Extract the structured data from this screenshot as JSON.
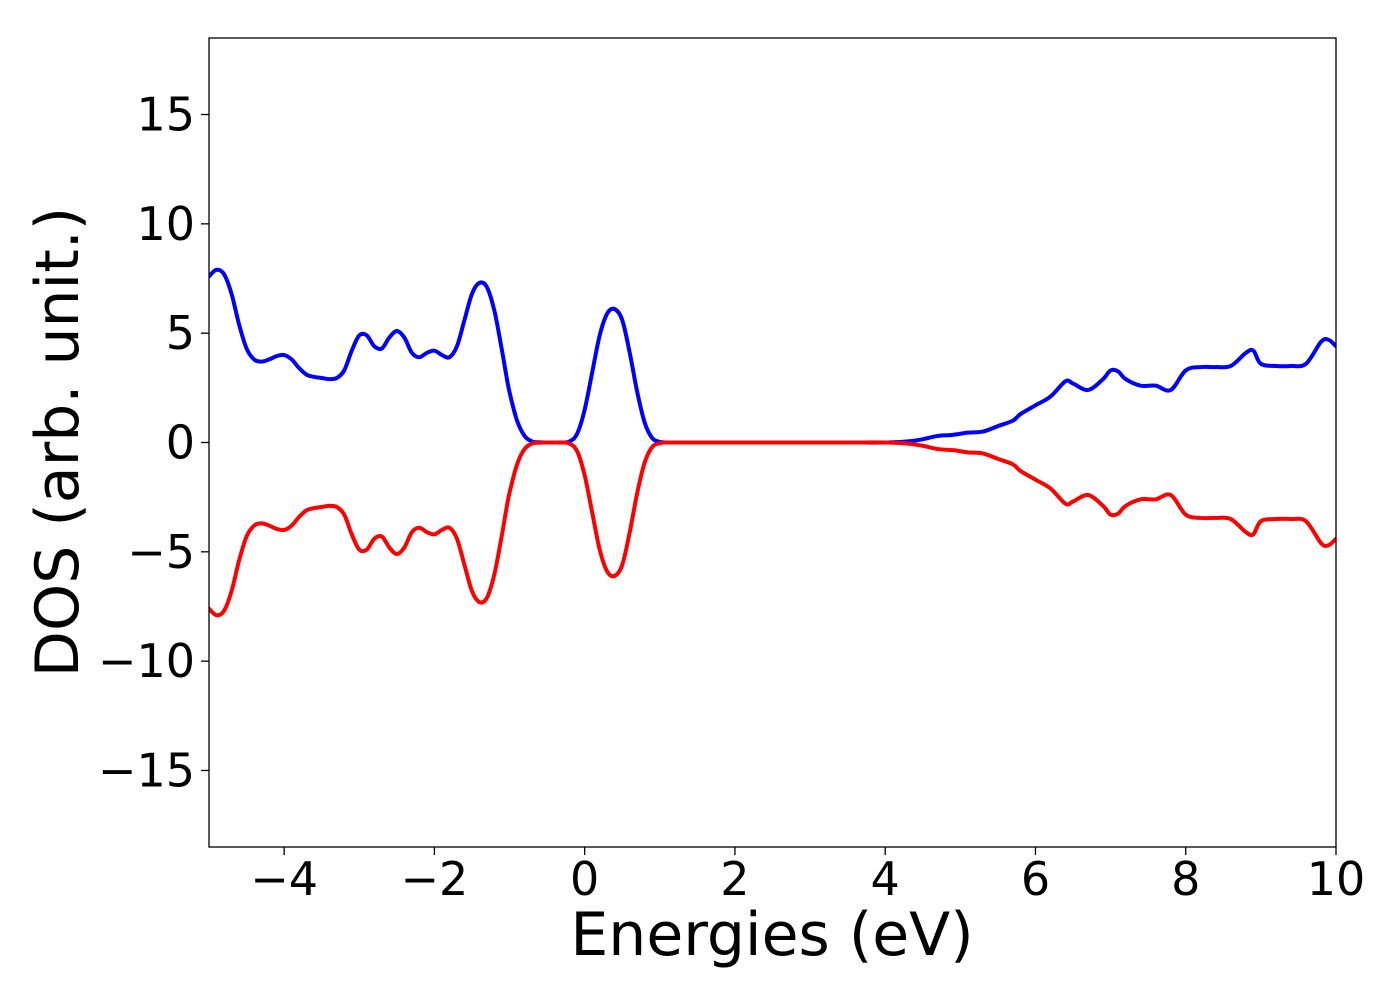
{
  "chart_data": {
    "type": "line",
    "xlabel": "Energies (eV)",
    "ylabel": "DOS (arb. unit.)",
    "xlim": [
      -5,
      10
    ],
    "ylim": [
      -18.5,
      18.5
    ],
    "x_ticks": [
      -4,
      -2,
      0,
      2,
      4,
      6,
      8,
      10
    ],
    "x_tick_labels": [
      "−4",
      "−2",
      "0",
      "2",
      "4",
      "6",
      "8",
      "10"
    ],
    "y_ticks": [
      -15,
      -10,
      -5,
      0,
      5,
      10,
      15
    ],
    "y_tick_labels": [
      "−15",
      "−10",
      "−5",
      "0",
      "5",
      "10",
      "15"
    ],
    "grid": false,
    "legend": "none",
    "series": [
      {
        "color": "#0000ff",
        "x": [
          -5.0,
          -4.9,
          -4.8,
          -4.7,
          -4.6,
          -4.5,
          -4.4,
          -4.3,
          -4.2,
          -4.1,
          -4.0,
          -3.9,
          -3.8,
          -3.7,
          -3.6,
          -3.5,
          -3.4,
          -3.3,
          -3.2,
          -3.1,
          -3.0,
          -2.9,
          -2.8,
          -2.7,
          -2.6,
          -2.5,
          -2.4,
          -2.3,
          -2.2,
          -2.1,
          -2.0,
          -1.9,
          -1.8,
          -1.7,
          -1.6,
          -1.5,
          -1.4,
          -1.3,
          -1.2,
          -1.1,
          -1.05,
          -1.0,
          -0.9,
          -0.8,
          -0.7,
          -0.6,
          -0.5,
          -0.4,
          -0.3,
          -0.2,
          -0.1,
          0.0,
          0.1,
          0.2,
          0.3,
          0.4,
          0.5,
          0.6,
          0.7,
          0.8,
          0.9,
          1.0,
          1.1,
          1.2,
          1.3,
          1.4,
          1.5,
          1.6,
          1.7,
          1.8,
          2.0,
          2.5,
          3.0,
          3.5,
          4.0,
          4.3,
          4.5,
          4.7,
          4.9,
          5.1,
          5.3,
          5.5,
          5.7,
          5.8,
          6.0,
          6.2,
          6.4,
          6.5,
          6.7,
          6.9,
          7.0,
          7.1,
          7.2,
          7.4,
          7.6,
          7.8,
          8.0,
          8.2,
          8.4,
          8.6,
          8.8,
          8.9,
          9.0,
          9.2,
          9.4,
          9.6,
          9.8,
          9.9,
          10.0
        ],
        "y": [
          7.6,
          7.9,
          7.7,
          6.8,
          5.4,
          4.3,
          3.8,
          3.7,
          3.8,
          3.95,
          4.0,
          3.8,
          3.4,
          3.1,
          3.0,
          2.95,
          2.9,
          2.95,
          3.3,
          4.2,
          4.9,
          4.9,
          4.4,
          4.3,
          4.8,
          5.1,
          4.8,
          4.1,
          3.9,
          4.1,
          4.2,
          4.0,
          3.9,
          4.4,
          5.6,
          6.8,
          7.3,
          7.1,
          6.0,
          4.2,
          3.2,
          2.3,
          1.0,
          0.3,
          0.05,
          0.01,
          0.0,
          0.0,
          0.0,
          0.05,
          0.4,
          1.5,
          3.2,
          4.9,
          5.9,
          6.1,
          5.6,
          4.1,
          2.3,
          0.9,
          0.2,
          0.03,
          0.0,
          0.0,
          0.0,
          0.0,
          0.0,
          0.0,
          0.0,
          0.0,
          0.0,
          0.0,
          0.0,
          0.0,
          0.0,
          0.05,
          0.15,
          0.3,
          0.35,
          0.45,
          0.5,
          0.75,
          1.0,
          1.3,
          1.7,
          2.1,
          2.8,
          2.7,
          2.4,
          2.9,
          3.3,
          3.25,
          2.9,
          2.6,
          2.6,
          2.4,
          3.3,
          3.45,
          3.45,
          3.5,
          4.1,
          4.2,
          3.6,
          3.5,
          3.5,
          3.6,
          4.6,
          4.7,
          4.4
        ]
      },
      {
        "color": "#ff0000",
        "x": [
          -5.0,
          -4.9,
          -4.8,
          -4.7,
          -4.6,
          -4.5,
          -4.4,
          -4.3,
          -4.2,
          -4.1,
          -4.0,
          -3.9,
          -3.8,
          -3.7,
          -3.6,
          -3.5,
          -3.4,
          -3.3,
          -3.2,
          -3.1,
          -3.0,
          -2.9,
          -2.8,
          -2.7,
          -2.6,
          -2.5,
          -2.4,
          -2.3,
          -2.2,
          -2.1,
          -2.0,
          -1.9,
          -1.8,
          -1.7,
          -1.6,
          -1.5,
          -1.4,
          -1.3,
          -1.2,
          -1.1,
          -1.05,
          -1.0,
          -0.9,
          -0.8,
          -0.7,
          -0.6,
          -0.5,
          -0.4,
          -0.3,
          -0.2,
          -0.1,
          0.0,
          0.1,
          0.2,
          0.3,
          0.4,
          0.5,
          0.6,
          0.7,
          0.8,
          0.9,
          1.0,
          1.1,
          1.2,
          1.3,
          1.4,
          1.5,
          1.6,
          1.7,
          1.8,
          2.0,
          2.5,
          3.0,
          3.5,
          4.0,
          4.3,
          4.5,
          4.7,
          4.9,
          5.1,
          5.3,
          5.5,
          5.7,
          5.8,
          6.0,
          6.2,
          6.4,
          6.5,
          6.7,
          6.9,
          7.0,
          7.1,
          7.2,
          7.4,
          7.6,
          7.8,
          8.0,
          8.2,
          8.4,
          8.6,
          8.8,
          8.9,
          9.0,
          9.2,
          9.4,
          9.6,
          9.8,
          9.9,
          10.0
        ],
        "y": [
          -7.6,
          -7.9,
          -7.7,
          -6.8,
          -5.4,
          -4.3,
          -3.8,
          -3.7,
          -3.8,
          -3.95,
          -4.0,
          -3.8,
          -3.4,
          -3.1,
          -3.0,
          -2.95,
          -2.9,
          -2.95,
          -3.3,
          -4.2,
          -4.9,
          -4.9,
          -4.4,
          -4.3,
          -4.8,
          -5.1,
          -4.8,
          -4.1,
          -3.9,
          -4.1,
          -4.2,
          -4.0,
          -3.9,
          -4.4,
          -5.6,
          -6.8,
          -7.3,
          -7.1,
          -6.0,
          -4.2,
          -3.2,
          -2.3,
          -1.0,
          -0.3,
          -0.05,
          -0.01,
          0.0,
          0.0,
          0.0,
          -0.05,
          -0.4,
          -1.5,
          -3.2,
          -4.9,
          -5.9,
          -6.1,
          -5.6,
          -4.1,
          -2.3,
          -0.9,
          -0.2,
          -0.03,
          0.0,
          0.0,
          0.0,
          0.0,
          0.0,
          0.0,
          0.0,
          0.0,
          0.0,
          0.0,
          0.0,
          0.0,
          0.0,
          -0.05,
          -0.15,
          -0.3,
          -0.35,
          -0.45,
          -0.5,
          -0.75,
          -1.0,
          -1.3,
          -1.7,
          -2.1,
          -2.8,
          -2.7,
          -2.4,
          -2.9,
          -3.3,
          -3.25,
          -2.9,
          -2.6,
          -2.6,
          -2.4,
          -3.3,
          -3.45,
          -3.45,
          -3.5,
          -4.1,
          -4.2,
          -3.6,
          -3.5,
          -3.5,
          -3.6,
          -4.6,
          -4.7,
          -4.4
        ]
      }
    ]
  }
}
